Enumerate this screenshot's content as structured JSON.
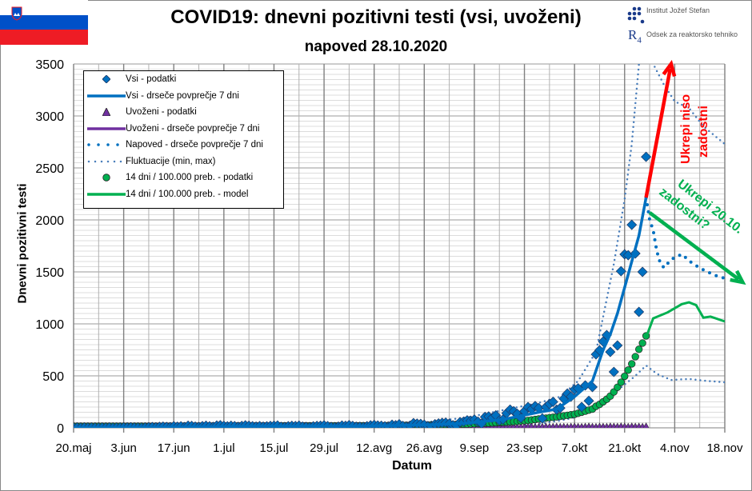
{
  "title": "COVID19: dnevni pozitivni testi (vsi, uvoženi)",
  "subtitle": "napoved 28.10.2020",
  "logos": {
    "ijs": "Institut Jožef Stefan",
    "r4": "Odsek za reaktorsko tehniko"
  },
  "flag_colors": [
    "#ffffff",
    "#0050c8",
    "#ee1c25"
  ],
  "annotations": {
    "red": "Ukrepi niso zadostni",
    "red_line1": "Ukrepi niso",
    "red_line2": "zadostni",
    "green_line1": "Ukrepi 20.10.",
    "green_line2": "zadostni?",
    "red_color": "#ff0000",
    "green_color": "#00b050"
  },
  "chart_data": {
    "type": "line",
    "title": "COVID19: dnevni pozitivni testi (vsi, uvoženi)",
    "xlabel": "Datum",
    "ylabel": "Dnevni pozitivni testi",
    "x_unit": "days since 20.maj 2020",
    "xlim": [
      0,
      182
    ],
    "ylim": [
      0,
      3500
    ],
    "yticks": [
      0,
      500,
      1000,
      1500,
      2000,
      2500,
      3000,
      3500
    ],
    "xticks": [
      {
        "day": 0,
        "label": "20.maj"
      },
      {
        "day": 14,
        "label": "3.jun"
      },
      {
        "day": 28,
        "label": "17.jun"
      },
      {
        "day": 42,
        "label": "1.jul"
      },
      {
        "day": 56,
        "label": "15.jul"
      },
      {
        "day": 70,
        "label": "29.jul"
      },
      {
        "day": 84,
        "label": "12.avg"
      },
      {
        "day": 98,
        "label": "26.avg"
      },
      {
        "day": 112,
        "label": "9.sep"
      },
      {
        "day": 126,
        "label": "23.sep"
      },
      {
        "day": 140,
        "label": "7.okt"
      },
      {
        "day": 154,
        "label": "21.okt"
      },
      {
        "day": 168,
        "label": "4.nov"
      },
      {
        "day": 182,
        "label": "18.nov"
      }
    ],
    "grid": true,
    "legend_position": "top-left",
    "legend": [
      "Vsi - podatki",
      "Vsi - drseče povprečje 7 dni",
      "Uvoženi - podatki",
      "Uvoženi - drseče povprečje 7 dni",
      "Napoved - drseče povprečje 7 dni",
      "Fluktuacije (min, max)",
      "14 dni / 100.000 preb. - podatki",
      "14 dni / 100.000 preb. - model"
    ],
    "colors": {
      "vsi": "#0070c0",
      "uvozeni": "#7030a0",
      "napoved": "#0070c0",
      "fluct": "#4a7ebb",
      "d14": "#00b050"
    },
    "vsi_podatki": [
      1,
      2,
      0,
      3,
      1,
      2,
      1,
      0,
      2,
      1,
      3,
      0,
      1,
      2,
      4,
      3,
      5,
      2,
      1,
      0,
      3,
      6,
      8,
      5,
      10,
      12,
      9,
      7,
      15,
      11,
      14,
      8,
      20,
      18,
      12,
      9,
      16,
      20,
      14,
      10,
      22,
      25,
      18,
      14,
      20,
      16,
      10,
      18,
      24,
      20,
      15,
      12,
      16,
      12,
      14,
      18,
      20,
      22,
      10,
      8,
      15,
      19,
      17,
      21,
      12,
      9,
      6,
      14,
      18,
      20,
      24,
      16,
      8,
      5,
      12,
      22,
      19,
      26,
      18,
      11,
      10,
      7,
      15,
      24,
      28,
      22,
      20,
      14,
      12,
      30,
      25,
      35,
      18,
      10,
      20,
      45,
      40,
      38,
      30,
      15,
      12,
      35,
      42,
      48,
      50,
      40,
      25,
      20,
      55,
      60,
      72,
      68,
      80,
      60,
      40,
      105,
      110,
      95,
      120,
      70,
      80,
      140,
      175,
      160,
      135,
      95,
      160,
      200,
      180,
      210,
      190,
      90,
      200,
      230,
      250,
      175,
      190,
      280,
      330,
      300,
      369,
      380,
      200,
      408,
      260,
      392,
      707,
      746,
      830,
      892,
      730,
      538,
      792,
      1507,
      1669,
      1661,
      1953,
      1677,
      1115,
      1500,
      2607
    ],
    "vsi_povprecje_7": [
      [
        0,
        2
      ],
      [
        30,
        8
      ],
      [
        50,
        15
      ],
      [
        80,
        15
      ],
      [
        100,
        30
      ],
      [
        110,
        45
      ],
      [
        120,
        80
      ],
      [
        130,
        150
      ],
      [
        135,
        180
      ],
      [
        140,
        300
      ],
      [
        145,
        450
      ],
      [
        148,
        750
      ],
      [
        150,
        900
      ],
      [
        152,
        1100
      ],
      [
        154,
        1350
      ],
      [
        156,
        1600
      ],
      [
        158,
        1850
      ],
      [
        160,
        2215
      ]
    ],
    "uvozeni_podatki": [
      0,
      1,
      0,
      0,
      1,
      0,
      0,
      2,
      0,
      1,
      0,
      0,
      1,
      0,
      2,
      1,
      0,
      3,
      1,
      0,
      2,
      4,
      1,
      3,
      5,
      2,
      1,
      4,
      6,
      2,
      3,
      1,
      4,
      2,
      5,
      3,
      1,
      2,
      4,
      3,
      2,
      5,
      3,
      1,
      4,
      2,
      3,
      5,
      2,
      1,
      3,
      4,
      2,
      5,
      6,
      3,
      2,
      4,
      3,
      5,
      4,
      2,
      6,
      3,
      4,
      7,
      5,
      3,
      4,
      6,
      8,
      5,
      4,
      7,
      6,
      3,
      5,
      8,
      6,
      4,
      9,
      7,
      5,
      8,
      10,
      6,
      4,
      7,
      9,
      5,
      6,
      8,
      7,
      4,
      6,
      5,
      3,
      4,
      6,
      5,
      3,
      4,
      5,
      6,
      4,
      3,
      5,
      4,
      6,
      5,
      4,
      3,
      5,
      6,
      4,
      5,
      6,
      4,
      3,
      5,
      6,
      4,
      5,
      7,
      5,
      4,
      6,
      5,
      7,
      4,
      5,
      6,
      8,
      5,
      6,
      7,
      5,
      6,
      4,
      7,
      8,
      6,
      5,
      7,
      9,
      6,
      5,
      8,
      7,
      6,
      9,
      8,
      7,
      10,
      8,
      6,
      9,
      7,
      8,
      6,
      9
    ],
    "uvozeni_povprecje_7": [
      [
        0,
        1
      ],
      [
        40,
        3
      ],
      [
        80,
        6
      ],
      [
        120,
        5
      ],
      [
        160,
        7
      ]
    ],
    "napoved_povprecje_7": [
      [
        160,
        2215
      ],
      [
        161,
        2000
      ],
      [
        162,
        1900
      ],
      [
        163,
        1700
      ],
      [
        164,
        1580
      ],
      [
        165,
        1540
      ],
      [
        167,
        1620
      ],
      [
        170,
        1669
      ],
      [
        173,
        1580
      ],
      [
        176,
        1520
      ],
      [
        179,
        1470
      ],
      [
        182,
        1438
      ]
    ],
    "fluktuacije_max": [
      [
        100,
        60
      ],
      [
        110,
        100
      ],
      [
        120,
        170
      ],
      [
        130,
        240
      ],
      [
        136,
        300
      ],
      [
        141,
        450
      ],
      [
        146,
        730
      ],
      [
        151,
        1580
      ],
      [
        154,
        2200
      ],
      [
        156,
        2730
      ],
      [
        158,
        3500
      ],
      [
        160,
        3700
      ],
      [
        162,
        3500
      ],
      [
        165,
        3300
      ],
      [
        168,
        3140
      ],
      [
        172,
        3076
      ],
      [
        176,
        2900
      ],
      [
        182,
        2730
      ]
    ],
    "fluktuacije_min": [
      [
        125,
        20
      ],
      [
        130,
        40
      ],
      [
        136,
        70
      ],
      [
        140,
        100
      ],
      [
        145,
        200
      ],
      [
        149,
        280
      ],
      [
        152,
        360
      ],
      [
        157,
        500
      ],
      [
        160,
        600
      ],
      [
        163,
        520
      ],
      [
        167,
        461
      ],
      [
        172,
        470
      ],
      [
        176,
        455
      ],
      [
        182,
        438
      ]
    ],
    "d14_podatki": [
      1,
      1,
      1,
      1,
      1,
      1,
      1,
      1,
      1,
      1,
      1,
      1,
      1,
      1,
      1,
      1,
      1,
      1,
      1,
      1,
      1,
      1,
      1,
      1,
      1,
      2,
      2,
      2,
      2,
      2,
      2,
      3,
      3,
      3,
      3,
      3,
      4,
      4,
      4,
      4,
      4,
      5,
      5,
      5,
      5,
      5,
      5,
      5,
      5,
      5,
      5,
      5,
      5,
      5,
      5,
      5,
      5,
      5,
      5,
      5,
      5,
      5,
      5,
      5,
      5,
      5,
      5,
      5,
      5,
      5,
      5,
      5,
      5,
      5,
      5,
      5,
      5,
      5,
      5,
      6,
      6,
      6,
      6,
      6,
      7,
      7,
      7,
      7,
      8,
      8,
      8,
      9,
      9,
      9,
      10,
      10,
      11,
      11,
      12,
      12,
      12,
      13,
      13,
      14,
      15,
      16,
      17,
      18,
      19,
      20,
      21,
      22,
      24,
      25,
      27,
      28,
      30,
      32,
      34,
      36,
      38,
      40,
      42,
      44,
      47,
      50,
      53,
      56,
      60,
      65,
      70,
      74,
      78,
      82,
      86,
      90,
      95,
      100,
      105,
      110,
      115,
      125,
      135,
      145,
      155,
      165,
      192,
      210,
      235,
      260,
      290,
      330,
      375,
      423,
      480,
      540,
      600,
      669,
      740,
      800,
      869
    ],
    "d14_model": [
      [
        160,
        869
      ],
      [
        162,
        1053
      ],
      [
        166,
        1110
      ],
      [
        170,
        1190
      ],
      [
        172,
        1207
      ],
      [
        174,
        1180
      ],
      [
        176,
        1060
      ],
      [
        178,
        1070
      ],
      [
        182,
        1023
      ]
    ],
    "arrows": {
      "ukrepi_niso": [
        [
          160,
          2215
        ],
        [
          167,
          3500
        ]
      ],
      "ukrepi_zadostni": [
        [
          161,
          2070
        ],
        [
          187,
          1400
        ]
      ]
    }
  }
}
